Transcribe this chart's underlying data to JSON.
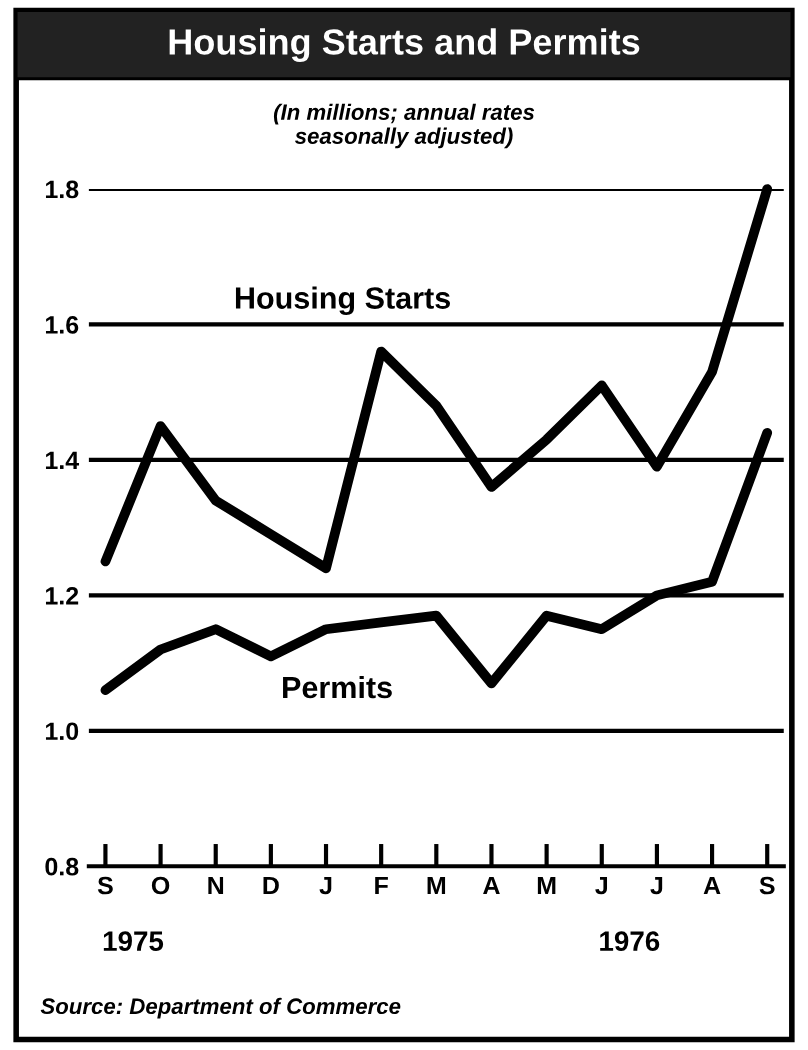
{
  "chart_data": {
    "type": "line",
    "title": "Housing Starts and Permits",
    "subtitle": "(In millions; annual rates\nseasonally adjusted)",
    "categories": [
      "S",
      "O",
      "N",
      "D",
      "J",
      "F",
      "M",
      "A",
      "M",
      "J",
      "J",
      "A",
      "S"
    ],
    "series": [
      {
        "name": "Housing Starts",
        "color": "#000000",
        "values": [
          1.25,
          1.45,
          1.34,
          1.29,
          1.24,
          1.56,
          1.48,
          1.36,
          1.43,
          1.51,
          1.39,
          1.53,
          1.8
        ]
      },
      {
        "name": "Permits",
        "color": "#000000",
        "values": [
          1.06,
          1.12,
          1.15,
          1.11,
          1.15,
          1.16,
          1.17,
          1.07,
          1.17,
          1.15,
          1.2,
          1.22,
          1.44
        ]
      }
    ],
    "ylim": [
      0.8,
      1.8
    ],
    "yticks": [
      0.8,
      {
        "value": 1.0,
        "label": "1.0"
      },
      1.2,
      1.4,
      1.6,
      1.8
    ],
    "grid": "y",
    "legend": false,
    "marker": "none",
    "line_style": "solid",
    "annotations": [
      "1975",
      "1976",
      "Source: Department of Commerce"
    ]
  }
}
